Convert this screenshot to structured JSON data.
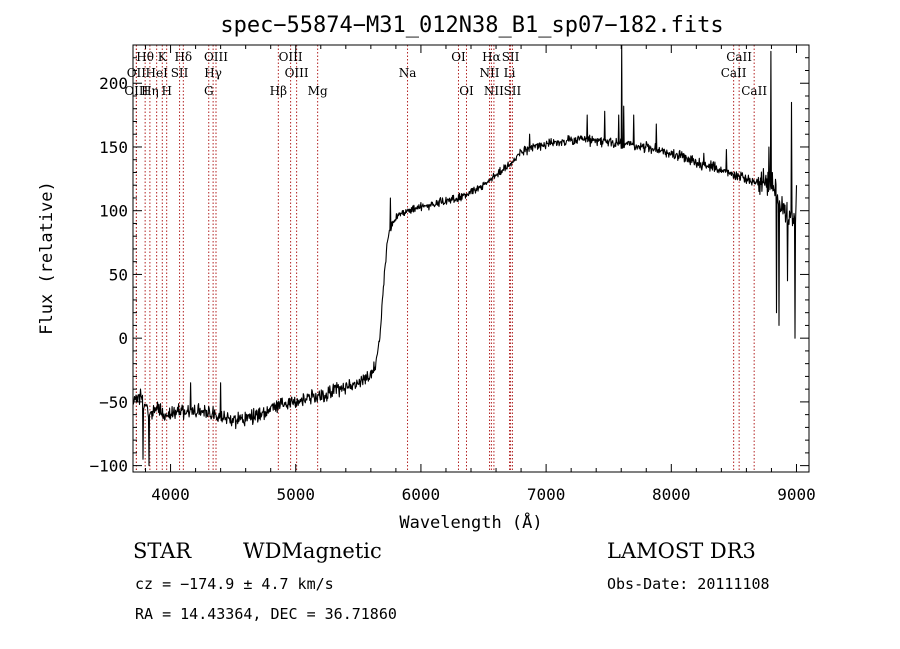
{
  "chart_data": {
    "type": "line",
    "title": "spec−55874−M31_012N38_B1_sp07−182.fits",
    "xlabel": "Wavelength (Å)",
    "ylabel": "Flux (relative)",
    "xlim": [
      3700,
      9100
    ],
    "ylim": [
      -105,
      230
    ],
    "xticks": [
      4000,
      5000,
      6000,
      7000,
      8000,
      9000
    ],
    "yticks": [
      -100,
      -50,
      0,
      50,
      100,
      150,
      200
    ],
    "grid": false,
    "line_color": "#000000",
    "marker_color": "#b22222",
    "spectrum_anchors": [
      [
        3700,
        -50
      ],
      [
        3760,
        -45
      ],
      [
        3820,
        -60
      ],
      [
        3900,
        -55
      ],
      [
        3960,
        -60
      ],
      [
        4050,
        -58
      ],
      [
        4200,
        -57
      ],
      [
        4350,
        -60
      ],
      [
        4500,
        -65
      ],
      [
        4650,
        -62
      ],
      [
        4800,
        -55
      ],
      [
        5000,
        -50
      ],
      [
        5200,
        -45
      ],
      [
        5400,
        -38
      ],
      [
        5600,
        -30
      ],
      [
        5640,
        -22
      ],
      [
        5670,
        0
      ],
      [
        5700,
        40
      ],
      [
        5730,
        75
      ],
      [
        5760,
        88
      ],
      [
        5800,
        95
      ],
      [
        5900,
        100
      ],
      [
        6000,
        103
      ],
      [
        6100,
        105
      ],
      [
        6200,
        108
      ],
      [
        6300,
        110
      ],
      [
        6400,
        115
      ],
      [
        6500,
        120
      ],
      [
        6600,
        128
      ],
      [
        6700,
        135
      ],
      [
        6750,
        142
      ],
      [
        6800,
        146
      ],
      [
        6900,
        150
      ],
      [
        7000,
        152
      ],
      [
        7200,
        155
      ],
      [
        7400,
        155
      ],
      [
        7600,
        152
      ],
      [
        7800,
        150
      ],
      [
        8000,
        145
      ],
      [
        8200,
        138
      ],
      [
        8400,
        132
      ],
      [
        8500,
        128
      ],
      [
        8600,
        125
      ],
      [
        8700,
        122
      ],
      [
        8800,
        118
      ],
      [
        8850,
        112
      ],
      [
        8900,
        100
      ],
      [
        9000,
        95
      ]
    ],
    "spectrum_features": [
      {
        "x": 3780,
        "y": -95
      },
      {
        "x": 3830,
        "y": -100
      },
      {
        "x": 4160,
        "y": -35
      },
      {
        "x": 4400,
        "y": -35
      },
      {
        "x": 5755,
        "y": 110
      },
      {
        "x": 6870,
        "y": 160
      },
      {
        "x": 7330,
        "y": 175
      },
      {
        "x": 7470,
        "y": 178
      },
      {
        "x": 7580,
        "y": 175
      },
      {
        "x": 7605,
        "y": 230
      },
      {
        "x": 7620,
        "y": 182
      },
      {
        "x": 7700,
        "y": 175
      },
      {
        "x": 7880,
        "y": 168
      },
      {
        "x": 8045,
        "y": 145
      },
      {
        "x": 8260,
        "y": 145
      },
      {
        "x": 8440,
        "y": 148
      },
      {
        "x": 8780,
        "y": 150
      },
      {
        "x": 8795,
        "y": 225
      },
      {
        "x": 8810,
        "y": 130
      },
      {
        "x": 8840,
        "y": 20
      },
      {
        "x": 8860,
        "y": 10
      },
      {
        "x": 8880,
        "y": 100
      },
      {
        "x": 8930,
        "y": 45
      },
      {
        "x": 8960,
        "y": 185
      },
      {
        "x": 8975,
        "y": 90
      },
      {
        "x": 8990,
        "y": 0
      },
      {
        "x": 9000,
        "y": 120
      }
    ],
    "spectral_lines": [
      {
        "label": "Hθ",
        "x": 3797,
        "row": 1
      },
      {
        "label": "OII",
        "x": 3727,
        "row": 2
      },
      {
        "label": "OIII",
        "x": 3727,
        "row": 3
      },
      {
        "label": "K",
        "x": 3934,
        "row": 1
      },
      {
        "label": "HeI",
        "x": 3889,
        "row": 2
      },
      {
        "label": "Hη",
        "x": 3835,
        "row": 3
      },
      {
        "label": "SII",
        "x": 4072,
        "row": 2
      },
      {
        "label": "H",
        "x": 3969,
        "row": 3
      },
      {
        "label": "Hδ",
        "x": 4102,
        "row": 1
      },
      {
        "label": "OIII",
        "x": 4363,
        "row": 1
      },
      {
        "label": "Hγ",
        "x": 4340,
        "row": 2
      },
      {
        "label": "G",
        "x": 4305,
        "row": 3
      },
      {
        "label": "OIII",
        "x": 4959,
        "row": 1
      },
      {
        "label": "OIII",
        "x": 5007,
        "row": 2
      },
      {
        "label": "Hβ",
        "x": 4861,
        "row": 3
      },
      {
        "label": "Mg",
        "x": 5175,
        "row": 3
      },
      {
        "label": "Na",
        "x": 5893,
        "row": 2
      },
      {
        "label": "OI",
        "x": 6300,
        "row": 1
      },
      {
        "label": "OI",
        "x": 6364,
        "row": 3
      },
      {
        "label": "Hα",
        "x": 6563,
        "row": 1
      },
      {
        "label": "NII",
        "x": 6548,
        "row": 2
      },
      {
        "label": "NII",
        "x": 6583,
        "row": 3
      },
      {
        "label": "SII",
        "x": 6716,
        "row": 1
      },
      {
        "label": "Li",
        "x": 6708,
        "row": 2
      },
      {
        "label": "SII",
        "x": 6731,
        "row": 3
      },
      {
        "label": "CaII",
        "x": 8542,
        "row": 1
      },
      {
        "label": "CaII",
        "x": 8498,
        "row": 2
      },
      {
        "label": "CaII",
        "x": 8662,
        "row": 3
      }
    ]
  },
  "info": {
    "object_class": "STAR",
    "subclass": "WDMagnetic",
    "survey": "LAMOST DR3",
    "redshift_line": "cz = −174.9 ± 4.7 km/s",
    "obs_date": "Obs-Date: 20111108",
    "coords": "RA =  14.43364, DEC =  36.71860"
  }
}
